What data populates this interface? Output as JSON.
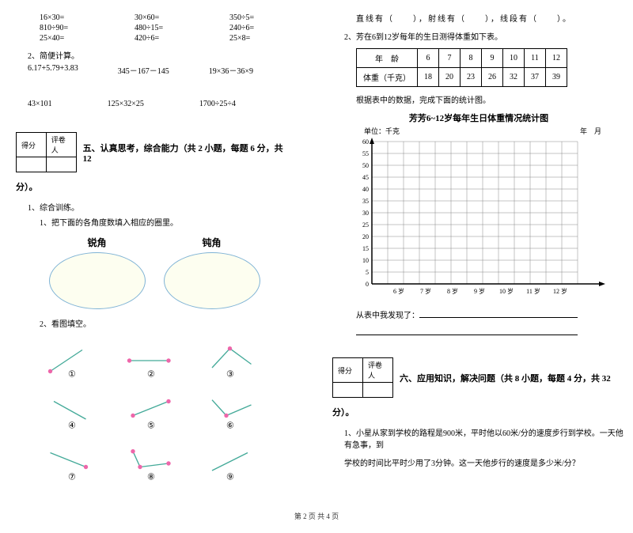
{
  "left": {
    "mathRows": [
      [
        "16×30=",
        "30×60=",
        "350÷5="
      ],
      [
        "810÷90=",
        "480÷15=",
        "240÷6="
      ],
      [
        "25×40=",
        "420÷6=",
        "25×8="
      ]
    ],
    "q2label": "2、简便计算。",
    "calcRows": [
      [
        "6.17+5.79+3.83",
        "345－167－145",
        "19×36－36×9"
      ],
      [
        "43×101",
        "125×32×25",
        "1700÷25÷4"
      ]
    ],
    "scoreHeaders": [
      "得分",
      "评卷人"
    ],
    "section5": "五、认真思考，综合能力（共 2 小题，每题 6 分，共 12",
    "fen": "分）。",
    "q1": "1、综合训练。",
    "q1_1": "1、把下面的各角度数填入相应的圈里。",
    "ovalLabels": [
      "锐角",
      "钝角"
    ],
    "q1_2": "2、看图填空。",
    "circleNums": [
      "①",
      "②",
      "③",
      "④",
      "⑤",
      "⑥",
      "⑦",
      "⑧",
      "⑨"
    ]
  },
  "right": {
    "lineQ": "直线有（　　），射线有（　　），线段有（　　）。",
    "q2": "2、芳在6到12岁每年的生日测得体重如下表。",
    "tableHeaders": [
      "年　龄",
      "6",
      "7",
      "8",
      "9",
      "10",
      "11",
      "12"
    ],
    "tableRow2": [
      "体重（千克）",
      "18",
      "20",
      "23",
      "26",
      "32",
      "37",
      "39"
    ],
    "tableNote": "根据表中的数据，完成下面的统计图。",
    "chartTitle": "芳芳6~12岁每年生日体重情况统计图",
    "unitLabel": "单位：千克",
    "dateLabel": "年　月",
    "yTicks": [
      "60",
      "55",
      "50",
      "45",
      "40",
      "35",
      "30",
      "25",
      "20",
      "15",
      "10",
      "5",
      "0"
    ],
    "xTicks": [
      "6 岁",
      "7 岁",
      "8 岁",
      "9 岁",
      "10 岁",
      "11 岁",
      "12 岁"
    ],
    "discover": "从表中我发现了：",
    "scoreHeaders": [
      "得分",
      "评卷人"
    ],
    "section6": "六、应用知识，解决问题（共 8 小题，每题 4 分，共 32",
    "fen": "分）。",
    "q6_1a": "1、小星从家到学校的路程是900米，平时他以60米/分的速度步行到学校。一天他有急事，到",
    "q6_1b": "学校的时间比平时少用了3分钟。这一天他步行的速度是多少米/分？"
  },
  "footer": "第 2 页 共 4 页"
}
